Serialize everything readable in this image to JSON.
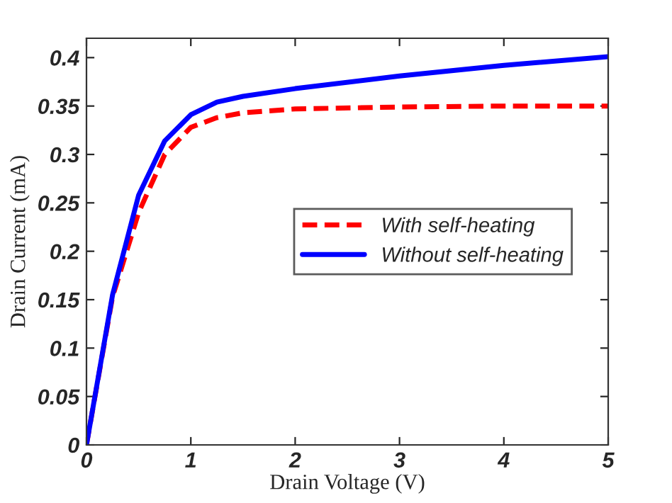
{
  "chart_data": {
    "type": "line",
    "xlabel": "Drain Voltage (V)",
    "ylabel": "Drain Current (mA)",
    "xlim": [
      0,
      5
    ],
    "ylim": [
      0,
      0.42
    ],
    "xticks": [
      0,
      1,
      2,
      3,
      4,
      5
    ],
    "yticks": [
      0,
      0.05,
      0.1,
      0.15,
      0.2,
      0.25,
      0.3,
      0.35,
      0.4
    ],
    "grid": false,
    "legend": "right",
    "marker": "none",
    "x": [
      0,
      0.25,
      0.5,
      0.75,
      1,
      1.25,
      1.5,
      2,
      3,
      4,
      5
    ],
    "series": [
      {
        "name": "With self-heating",
        "color": "#ff0000",
        "line_style": "dashed",
        "values": [
          0,
          0.153,
          0.24,
          0.3,
          0.328,
          0.338,
          0.343,
          0.347,
          0.349,
          0.35,
          0.35
        ]
      },
      {
        "name": "Without self-heating",
        "color": "#0000ff",
        "line_style": "solid",
        "values": [
          0,
          0.155,
          0.258,
          0.314,
          0.341,
          0.354,
          0.36,
          0.368,
          0.381,
          0.392,
          0.401
        ]
      }
    ]
  }
}
